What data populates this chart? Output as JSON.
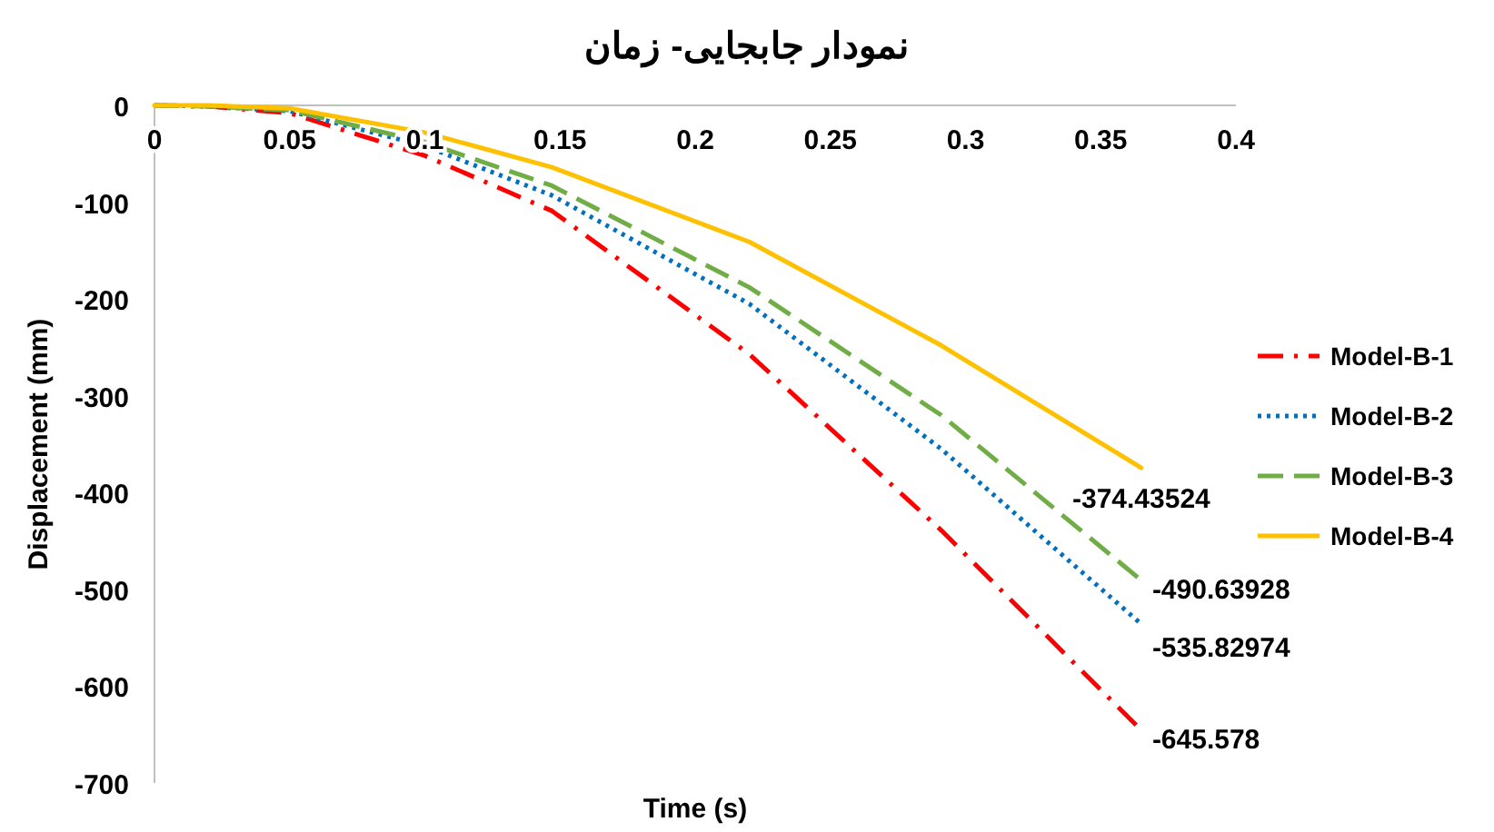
{
  "chart_data": {
    "type": "line",
    "title": "نمودار جابجایی- زمان",
    "xlabel": "Time (s)",
    "ylabel": "Displacement (mm)",
    "x": [
      0,
      0.02,
      0.05,
      0.1,
      0.147,
      0.22,
      0.291,
      0.365
    ],
    "series": [
      {
        "name": "Model-B-1",
        "color": "#ff0000",
        "line_style": "dashdot",
        "values": [
          0,
          -1,
          -8,
          -52,
          -109,
          -257,
          -439,
          -645.578
        ],
        "value_labels": [
          null,
          null,
          null,
          null,
          null,
          null,
          null,
          "-645.578"
        ]
      },
      {
        "name": "Model-B-2",
        "color": "#0070c0",
        "line_style": "dotted",
        "values": [
          0,
          -1,
          -6,
          -42,
          -93,
          -205,
          -355,
          -535.82974
        ],
        "value_labels": [
          null,
          null,
          null,
          null,
          null,
          null,
          null,
          "-535.82974"
        ]
      },
      {
        "name": "Model-B-3",
        "color": "#70ad47",
        "line_style": "dashed",
        "values": [
          0,
          -1,
          -5,
          -38,
          -83,
          -188,
          -320,
          -490.63928
        ],
        "value_labels": [
          null,
          null,
          null,
          null,
          null,
          null,
          null,
          "-490.63928"
        ]
      },
      {
        "name": "Model-B-4",
        "color": "#ffc000",
        "line_style": "solid",
        "values": [
          0,
          0,
          -3,
          -28,
          -64,
          -141,
          -248,
          -374.43524
        ],
        "value_labels": [
          null,
          null,
          null,
          null,
          null,
          null,
          null,
          "-374.43524"
        ]
      }
    ],
    "xlim": [
      0,
      0.4
    ],
    "xticks": [
      0,
      0.05,
      0.1,
      0.15,
      0.2,
      0.25,
      0.3,
      0.35,
      0.4
    ],
    "ylim": [
      -700,
      0
    ],
    "yticks": [
      0,
      -100,
      -200,
      -300,
      -400,
      -500,
      -600,
      -700
    ],
    "grid": false,
    "legend": "right",
    "marker": "none"
  }
}
